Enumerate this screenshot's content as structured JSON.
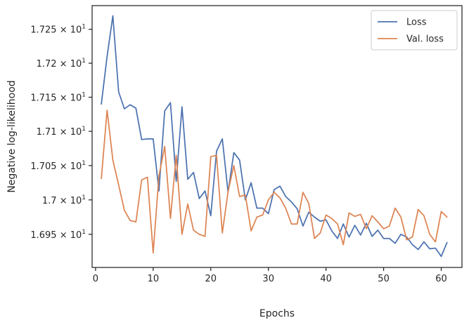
{
  "chart_data": {
    "type": "line",
    "xlabel": "Epochs",
    "ylabel": "Negative log-likelihood",
    "xlim": [
      -0.6,
      63.6
    ],
    "ylim": [
      16.902,
      17.285
    ],
    "log_y": true,
    "grid": false,
    "legend_placement": "top-right",
    "x_ticks": [
      0,
      10,
      20,
      30,
      40,
      50,
      60
    ],
    "y_ticks": [
      {
        "value": 16.95,
        "mantissa": "1.695"
      },
      {
        "value": 17.0,
        "mantissa": "1.7"
      },
      {
        "value": 17.05,
        "mantissa": "1.705"
      },
      {
        "value": 17.1,
        "mantissa": "1.71"
      },
      {
        "value": 17.15,
        "mantissa": "1.715"
      },
      {
        "value": 17.2,
        "mantissa": "1.72"
      },
      {
        "value": 17.25,
        "mantissa": "1.725"
      }
    ],
    "y_tick_base": "10",
    "y_tick_exponent": "1",
    "y_tick_times": "×",
    "x": [
      1,
      2,
      3,
      4,
      5,
      6,
      7,
      8,
      9,
      10,
      11,
      12,
      13,
      14,
      15,
      16,
      17,
      18,
      19,
      20,
      21,
      22,
      23,
      24,
      25,
      26,
      27,
      28,
      29,
      30,
      31,
      32,
      33,
      34,
      35,
      36,
      37,
      38,
      39,
      40,
      41,
      42,
      43,
      44,
      45,
      46,
      47,
      48,
      49,
      50,
      51,
      52,
      53,
      54,
      55,
      56,
      57,
      58,
      59,
      60,
      61
    ],
    "series": [
      {
        "name": "Loss",
        "color": "#4c72b0",
        "values": [
          17.14,
          17.21,
          17.27,
          17.158,
          17.133,
          17.139,
          17.134,
          17.088,
          17.089,
          17.089,
          17.013,
          17.13,
          17.142,
          17.027,
          17.136,
          17.03,
          17.04,
          17.002,
          17.013,
          16.977,
          17.071,
          17.089,
          17.011,
          17.069,
          17.058,
          17.0,
          17.025,
          16.988,
          16.988,
          16.98,
          17.015,
          17.02,
          17.005,
          16.997,
          16.987,
          16.962,
          16.982,
          16.975,
          16.969,
          16.971,
          16.955,
          16.944,
          16.965,
          16.946,
          16.963,
          16.949,
          16.966,
          16.947,
          16.956,
          16.944,
          16.944,
          16.937,
          16.95,
          16.946,
          16.935,
          16.928,
          16.939,
          16.929,
          16.93,
          16.918,
          16.938
        ]
      },
      {
        "name": "Val. loss",
        "color": "#dd8452",
        "values": [
          17.031,
          17.131,
          17.058,
          17.022,
          16.985,
          16.97,
          16.968,
          17.029,
          17.033,
          16.923,
          17.035,
          17.078,
          16.973,
          17.065,
          16.95,
          16.994,
          16.956,
          16.95,
          16.947,
          17.063,
          17.065,
          16.952,
          17.012,
          17.05,
          17.005,
          17.007,
          16.955,
          16.975,
          16.978,
          17.0,
          17.011,
          17.003,
          16.988,
          16.965,
          16.965,
          17.011,
          16.995,
          16.944,
          16.952,
          16.978,
          16.973,
          16.965,
          16.935,
          16.981,
          16.976,
          16.979,
          16.958,
          16.977,
          16.968,
          16.958,
          16.962,
          16.988,
          16.975,
          16.942,
          16.946,
          16.986,
          16.977,
          16.95,
          16.939,
          16.983,
          16.975
        ]
      }
    ]
  }
}
